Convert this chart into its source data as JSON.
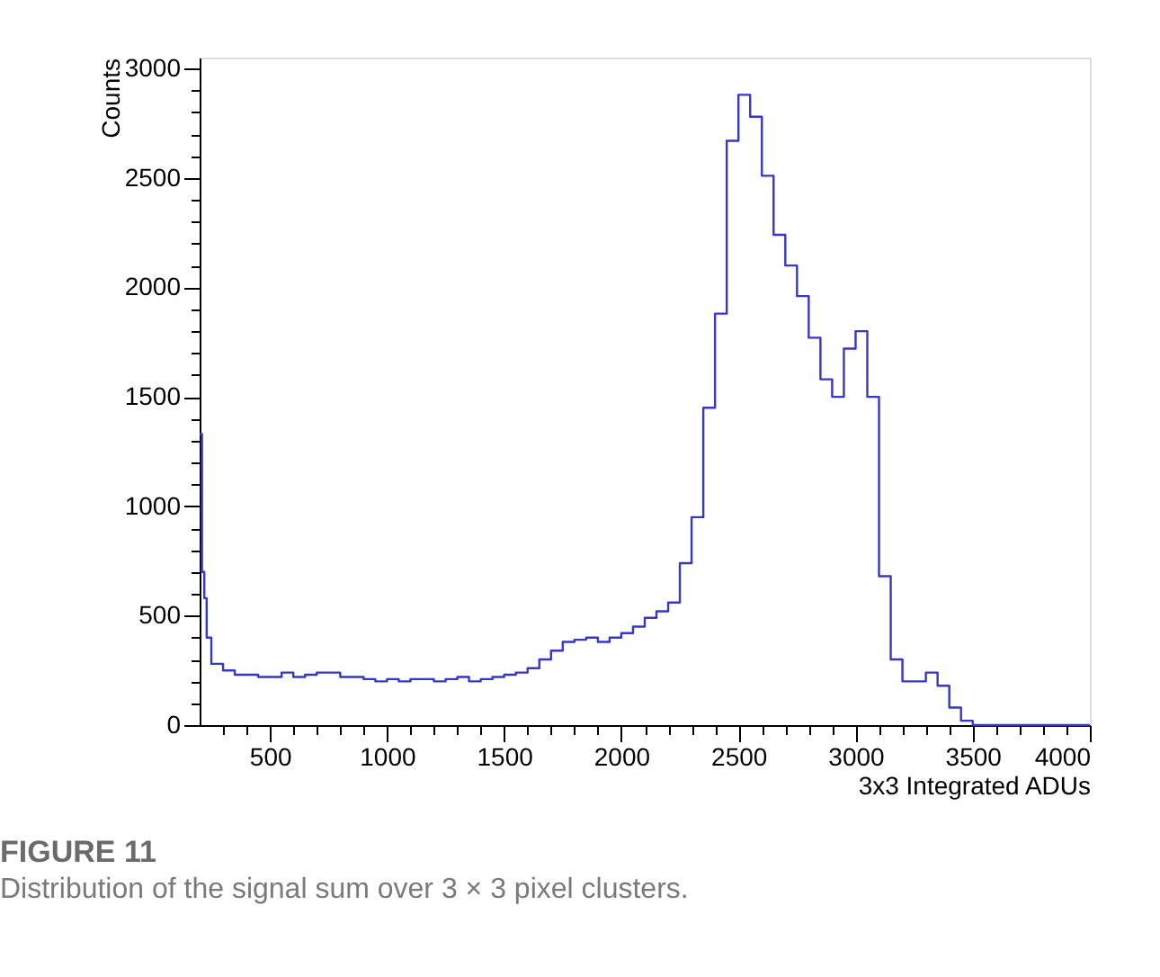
{
  "chart_data": {
    "type": "histogram",
    "xlabel": "3x3 Integrated ADUs",
    "ylabel": "Counts",
    "annotations": [
      "FIGURE 11",
      "Distribution of the signal sum over 3 × 3 pixel clusters."
    ],
    "bins": [
      200,
      210,
      220,
      230,
      250,
      300,
      350,
      400,
      450,
      500,
      550,
      600,
      650,
      700,
      750,
      800,
      850,
      900,
      950,
      1000,
      1050,
      1100,
      1150,
      1200,
      1250,
      1300,
      1350,
      1400,
      1450,
      1500,
      1550,
      1600,
      1650,
      1700,
      1750,
      1800,
      1850,
      1900,
      1950,
      2000,
      2050,
      2100,
      2150,
      2200,
      2250,
      2300,
      2350,
      2400,
      2450,
      2500,
      2550,
      2600,
      2650,
      2700,
      2750,
      2800,
      2850,
      2900,
      2950,
      3000,
      3050,
      3100,
      3150,
      3200,
      3250,
      3300,
      3350,
      3400,
      3450,
      3500,
      3550,
      3600,
      3650,
      3700,
      3750,
      3800,
      3850,
      3900,
      3950,
      4000
    ],
    "values": [
      1330,
      700,
      580,
      400,
      280,
      250,
      230,
      230,
      220,
      220,
      240,
      220,
      230,
      240,
      240,
      220,
      220,
      210,
      200,
      210,
      200,
      210,
      210,
      200,
      210,
      220,
      200,
      210,
      220,
      230,
      240,
      260,
      300,
      340,
      380,
      390,
      400,
      380,
      400,
      420,
      450,
      490,
      520,
      560,
      740,
      950,
      1450,
      1880,
      2670,
      2880,
      2780,
      2510,
      2240,
      2100,
      1960,
      1770,
      1580,
      1500,
      1720,
      1800,
      1500,
      680,
      300,
      200,
      200,
      240,
      180,
      80,
      20,
      0,
      0,
      0,
      0,
      0,
      0,
      0,
      0,
      0,
      0
    ],
    "color": "#3636c8",
    "xlim": [
      200,
      4000
    ],
    "xticks": [
      {
        "value": 300,
        "label": null
      },
      {
        "value": 400,
        "label": null
      },
      500,
      {
        "value": 600,
        "label": null
      },
      {
        "value": 700,
        "label": null
      },
      {
        "value": 800,
        "label": null
      },
      {
        "value": 900,
        "label": null
      },
      1000,
      {
        "value": 1100,
        "label": null
      },
      {
        "value": 1200,
        "label": null
      },
      {
        "value": 1300,
        "label": null
      },
      {
        "value": 1400,
        "label": null
      },
      1500,
      {
        "value": 1600,
        "label": null
      },
      {
        "value": 1700,
        "label": null
      },
      {
        "value": 1800,
        "label": null
      },
      {
        "value": 1900,
        "label": null
      },
      2000,
      {
        "value": 2100,
        "label": null
      },
      {
        "value": 2200,
        "label": null
      },
      {
        "value": 2300,
        "label": null
      },
      {
        "value": 2400,
        "label": null
      },
      2500,
      {
        "value": 2600,
        "label": null
      },
      {
        "value": 2700,
        "label": null
      },
      {
        "value": 2800,
        "label": null
      },
      {
        "value": 2900,
        "label": null
      },
      3000,
      {
        "value": 3100,
        "label": null
      },
      {
        "value": 3200,
        "label": null
      },
      {
        "value": 3300,
        "label": null
      },
      {
        "value": 3400,
        "label": null
      },
      3500,
      {
        "value": 3600,
        "label": null
      },
      {
        "value": 3700,
        "label": null
      },
      {
        "value": 3800,
        "label": null
      },
      {
        "value": 3900,
        "label": null
      },
      4000
    ],
    "ylim": [
      0,
      3050
    ],
    "yticks": [
      0,
      {
        "value": 100,
        "label": null
      },
      {
        "value": 200,
        "label": null
      },
      {
        "value": 300,
        "label": null
      },
      {
        "value": 400,
        "label": null
      },
      500,
      {
        "value": 600,
        "label": null
      },
      {
        "value": 700,
        "label": null
      },
      {
        "value": 800,
        "label": null
      },
      {
        "value": 900,
        "label": null
      },
      1000,
      {
        "value": 1100,
        "label": null
      },
      {
        "value": 1200,
        "label": null
      },
      {
        "value": 1300,
        "label": null
      },
      {
        "value": 1400,
        "label": null
      },
      1500,
      {
        "value": 1600,
        "label": null
      },
      {
        "value": 1700,
        "label": null
      },
      {
        "value": 1800,
        "label": null
      },
      {
        "value": 1900,
        "label": null
      },
      2000,
      {
        "value": 2100,
        "label": null
      },
      {
        "value": 2200,
        "label": null
      },
      {
        "value": 2300,
        "label": null
      },
      {
        "value": 2400,
        "label": null
      },
      2500,
      {
        "value": 2600,
        "label": null
      },
      {
        "value": 2700,
        "label": null
      },
      {
        "value": 2800,
        "label": null
      },
      {
        "value": 2900,
        "label": null
      },
      3000
    ],
    "grid": false
  }
}
